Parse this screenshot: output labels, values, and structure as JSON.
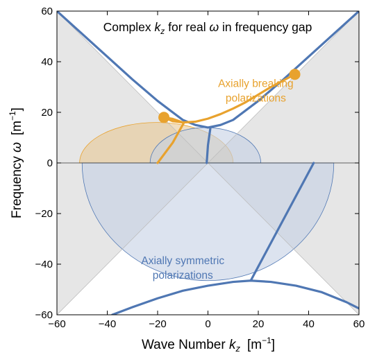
{
  "chart_data": {
    "type": "line",
    "title_parts": [
      "Complex ",
      "k",
      "z",
      " for real ",
      "ω",
      " in frequency gap"
    ],
    "xlabel_parts": [
      "Wave Number ",
      "k",
      "z",
      "[m",
      "−1",
      "]"
    ],
    "ylabel_parts": [
      "Frequency ",
      "ω",
      "[m",
      "−1",
      "]"
    ],
    "xlim": [
      -60,
      60
    ],
    "ylim": [
      -60,
      60
    ],
    "xticks": [
      -60,
      -40,
      -20,
      0,
      20,
      40,
      60
    ],
    "yticks": [
      -60,
      -40,
      -20,
      0,
      20,
      40,
      60
    ],
    "xtick_labels": [
      "−60",
      "−40",
      "−20",
      "0",
      "20",
      "40",
      "60"
    ],
    "ytick_labels": [
      "−60",
      "−40",
      "−20",
      "0",
      "20",
      "40",
      "60"
    ],
    "grid": false,
    "colors": {
      "blue": "#4f77b3",
      "orange": "#e8a22e",
      "lightcone": "#e2e2e2",
      "blue_fill": "#c4d0e4",
      "orange_fill": "#e8c894"
    },
    "annotations": [
      {
        "label": "breaking",
        "lines": [
          "Axially breaking",
          "polarizations"
        ],
        "color": "#e8a22e",
        "x": 19,
        "y": 30
      },
      {
        "label": "symmetric",
        "lines": [
          "Axially symmetric",
          "polarizations"
        ],
        "color": "#4f77b3",
        "x": -10,
        "y": -40
      }
    ],
    "series": [
      {
        "key": "upper_dispersion",
        "color": "#4f77b3",
        "x": [
          -60,
          -50,
          -40,
          -30,
          -20,
          -10,
          -5,
          0,
          5,
          10,
          20,
          30,
          40,
          50,
          60
        ],
        "y": [
          60,
          51,
          42,
          33,
          24.5,
          17,
          15,
          14,
          15,
          17,
          24.5,
          33,
          42,
          51,
          60
        ]
      },
      {
        "key": "lower_dispersion",
        "color": "#4f77b3",
        "x": [
          -38,
          -30,
          -20,
          -10,
          0,
          10,
          17,
          25,
          35,
          45,
          55,
          60
        ],
        "y": [
          -60,
          -57,
          -53.5,
          -50.5,
          -48.5,
          -47,
          -46.5,
          -47,
          -48.5,
          -51,
          -55,
          -57.5
        ]
      },
      {
        "key": "imaginary_branch_lower",
        "color": "#4f77b3",
        "x": [
          17,
          42
        ],
        "y": [
          -46.5,
          0
        ]
      },
      {
        "key": "imaginary_branch_upper",
        "color": "#4f77b3",
        "x": [
          -0.5,
          0,
          1
        ],
        "y": [
          0,
          7,
          14
        ]
      },
      {
        "key": "orange_imaginary",
        "color": "#e8a22e",
        "x": [
          -20,
          -14,
          -9.5
        ],
        "y": [
          0,
          8,
          16
        ]
      },
      {
        "key": "orange_breaking",
        "color": "#e8a22e",
        "x": [
          -17.5,
          -14,
          -10,
          -5,
          0,
          5,
          10,
          15,
          20,
          25,
          30,
          34.5
        ],
        "y": [
          18,
          16.5,
          16,
          16.3,
          17.5,
          19.3,
          21.5,
          24,
          27,
          30,
          32.6,
          35
        ]
      },
      {
        "key": "orange_connector",
        "color": "#e8a22e",
        "x": [
          -17.5,
          -14,
          -12,
          -10
        ],
        "y": [
          18,
          17.4,
          16.7,
          16
        ]
      }
    ],
    "points": [
      {
        "x": -17.5,
        "y": 18,
        "color": "#e8a22e"
      },
      {
        "x": 34.5,
        "y": 35,
        "color": "#e8a22e"
      }
    ],
    "regions": [
      {
        "key": "orange_ellipse",
        "cx": -20.5,
        "cy": 0,
        "rx": 30.5,
        "ry": 16
      },
      {
        "key": "blue_small_ellipse",
        "cx": -1,
        "cy": 0,
        "rx": 22,
        "ry": 14
      },
      {
        "key": "blue_large_lower_ellipse",
        "cx": 0,
        "cy": 0,
        "rx": 50,
        "ry": 46.5
      }
    ]
  }
}
